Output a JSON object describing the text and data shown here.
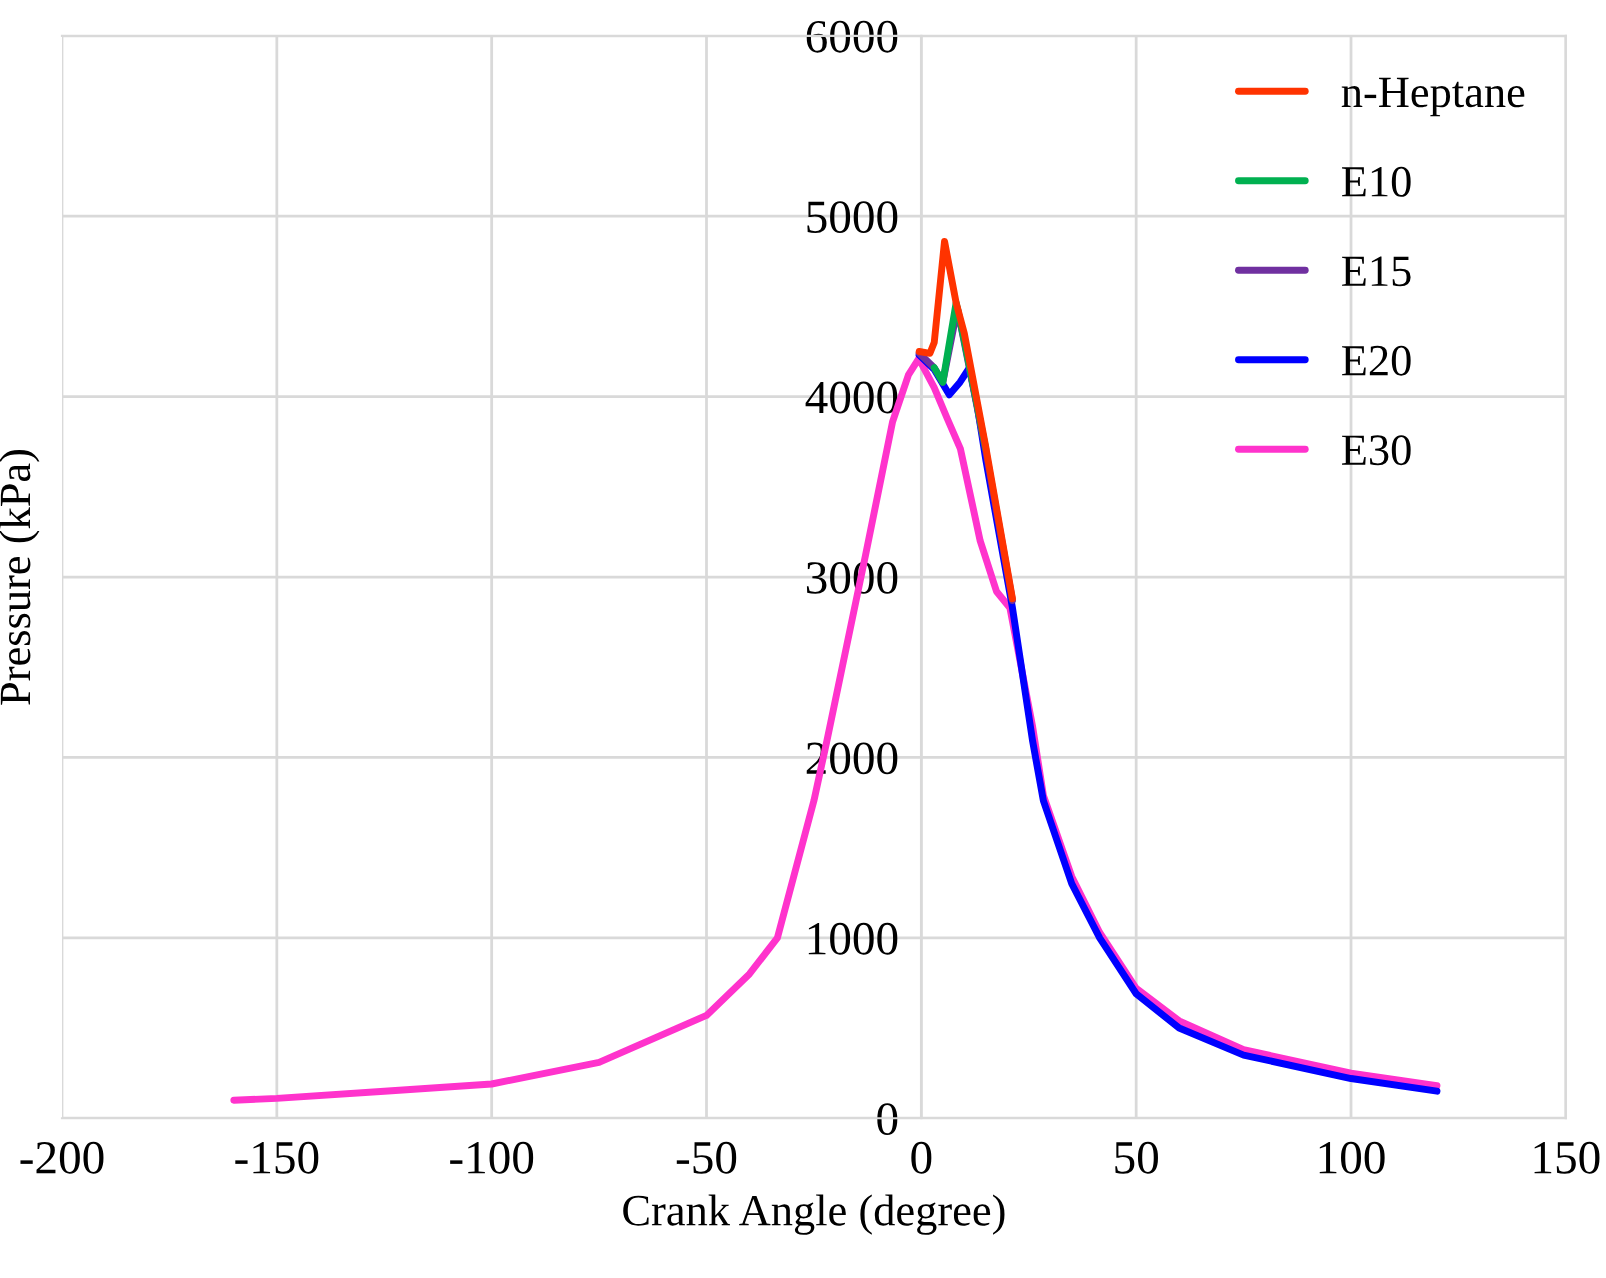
{
  "chart_data": {
    "type": "line",
    "xlabel": "Crank Angle (degree)",
    "ylabel": "Pressure (kPa)",
    "xlim": [
      -200,
      150
    ],
    "xticks": [
      -200,
      -150,
      -100,
      -50,
      0,
      50,
      100,
      150
    ],
    "ylim": [
      0,
      6000
    ],
    "yticks": [
      0,
      1000,
      2000,
      3000,
      4000,
      5000,
      6000
    ],
    "grid": true,
    "legend": "top right",
    "marker": "none",
    "line_style": "solid",
    "series": [
      {
        "name": "n-Heptane",
        "color": "#ff3300",
        "x": [
          -0.5,
          2,
          3,
          5.4,
          8.1,
          10,
          15,
          21.2
        ],
        "values": [
          4250,
          4240,
          4300,
          4860,
          4520,
          4350,
          3720,
          2880
        ]
      },
      {
        "name": "E10",
        "color": "#00b050",
        "x": [
          3,
          5,
          8.1,
          10,
          15
        ],
        "values": [
          4160,
          4080,
          4520,
          4310,
          3710
        ]
      },
      {
        "name": "E15",
        "color": "#7030a0",
        "x": [
          -0.5,
          3,
          5,
          8.4,
          10,
          15,
          21.2
        ],
        "values": [
          4240,
          4160,
          4080,
          4490,
          4300,
          3700,
          2870
        ]
      },
      {
        "name": "E20",
        "color": "#0000ff",
        "x": [
          -0.5,
          3,
          6.5,
          9,
          11.2,
          13,
          15,
          21.2,
          25.9,
          28.4,
          35,
          41.5,
          50,
          60,
          75,
          100,
          120
        ],
        "values": [
          4230,
          4150,
          4010,
          4080,
          4160,
          3950,
          3650,
          2830,
          2090,
          1760,
          1300,
          1000,
          690,
          500,
          350,
          220,
          150
        ]
      },
      {
        "name": "E30",
        "color": "#ff33cc",
        "x": [
          -160,
          -150,
          -125,
          -100,
          -75,
          -50,
          -40,
          -33.5,
          -25,
          -22,
          -13,
          -6.7,
          -3,
          -0.6,
          3,
          6,
          9.1,
          13.7,
          17.5,
          20.6,
          25.9,
          28.4,
          35,
          41.5,
          50,
          60,
          75,
          100,
          120
        ],
        "values": [
          100,
          110,
          150,
          190,
          310,
          570,
          800,
          1000,
          1760,
          2090,
          3120,
          3860,
          4120,
          4210,
          4050,
          3880,
          3710,
          3200,
          2920,
          2830,
          2170,
          1790,
          1340,
          1030,
          720,
          540,
          380,
          250,
          180
        ]
      }
    ]
  }
}
